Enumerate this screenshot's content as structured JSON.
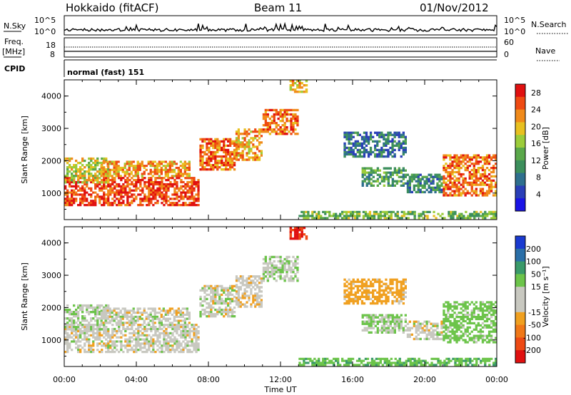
{
  "header": {
    "station": "Hokkaido (fitACF)",
    "beam": "Beam 11",
    "date": "01/Nov/2012"
  },
  "status_panels": {
    "nsky_label": "N.Sky",
    "nsearch_label": "N.Search",
    "freq_label_line1": "Freq.",
    "freq_label_line2": "[MHz]",
    "nave_label": "Nave",
    "cpid_label": "CPID",
    "cpid_text": "normal (fast) 151",
    "nsky_ticks": [
      "10^5",
      "10^0"
    ],
    "nsearch_ticks": [
      "10^5",
      "10^0"
    ],
    "freq_ticks": [
      "18",
      "8"
    ],
    "nave_ticks": [
      "60",
      "0"
    ]
  },
  "chart_data": [
    {
      "type": "heatmap",
      "panel": "power",
      "xlabel": "Time UT",
      "ylabel": "Slant Range [km]",
      "x_ticks": [
        "00:00",
        "04:00",
        "08:00",
        "12:00",
        "16:00",
        "20:00",
        "00:00"
      ],
      "xlim_hours": [
        0,
        24
      ],
      "y_ticks": [
        1000,
        2000,
        3000,
        4000
      ],
      "ylim": [
        180,
        4500
      ],
      "colorbar": {
        "label": "Power [dB]",
        "ticks": [
          4,
          8,
          12,
          16,
          20,
          24,
          28
        ],
        "range": [
          0,
          30
        ],
        "colors": [
          "#1a14e6",
          "#2a3fb8",
          "#2e6f8e",
          "#3c8f5c",
          "#5aa84a",
          "#9ccc3a",
          "#e8c020",
          "#f08a1a",
          "#ef4a12",
          "#e01010"
        ]
      },
      "regions": [
        {
          "t0": 0.0,
          "t1": 7.5,
          "r0": 600,
          "r1": 1500,
          "value": 26
        },
        {
          "t0": 0.0,
          "t1": 2.5,
          "r0": 1300,
          "r1": 2100,
          "value": 18
        },
        {
          "t0": 2.0,
          "t1": 7.0,
          "r0": 1500,
          "r1": 2000,
          "value": 22
        },
        {
          "t0": 7.5,
          "t1": 9.5,
          "r0": 1700,
          "r1": 2700,
          "value": 24
        },
        {
          "t0": 9.5,
          "t1": 11.0,
          "r0": 2000,
          "r1": 3000,
          "value": 22
        },
        {
          "t0": 11.0,
          "t1": 13.0,
          "r0": 2800,
          "r1": 3600,
          "value": 24
        },
        {
          "t0": 12.5,
          "t1": 13.5,
          "r0": 4100,
          "r1": 4500,
          "value": 20
        },
        {
          "t0": 15.5,
          "t1": 19.0,
          "r0": 2100,
          "r1": 2900,
          "value": 8
        },
        {
          "t0": 16.5,
          "t1": 19.0,
          "r0": 1200,
          "r1": 1800,
          "value": 12
        },
        {
          "t0": 19.0,
          "t1": 21.0,
          "r0": 1000,
          "r1": 1600,
          "value": 10
        },
        {
          "t0": 21.0,
          "t1": 24.0,
          "r0": 900,
          "r1": 2200,
          "value": 24
        },
        {
          "t0": 13.0,
          "t1": 24.0,
          "r0": 200,
          "r1": 450,
          "value": 14
        }
      ]
    },
    {
      "type": "heatmap",
      "panel": "velocity",
      "xlabel": "Time UT",
      "ylabel": "Slant Range [km]",
      "x_ticks": [
        "00:00",
        "04:00",
        "08:00",
        "12:00",
        "16:00",
        "20:00",
        "00:00"
      ],
      "xlim_hours": [
        0,
        24
      ],
      "y_ticks": [
        1000,
        2000,
        3000,
        4000
      ],
      "ylim": [
        180,
        4500
      ],
      "colorbar": {
        "label": "Velocity [m s⁻¹]",
        "ticks": [
          200,
          100,
          50,
          15,
          -15,
          -50,
          -100,
          -200
        ],
        "colors": [
          "#1a3ad0",
          "#2a6fa8",
          "#3a9a6a",
          "#6cc44a",
          "#c8c8c0",
          "#c8c8c0",
          "#f0a020",
          "#f07818",
          "#ee4a14",
          "#e01010"
        ]
      },
      "regions": [
        {
          "t0": 0.0,
          "t1": 7.5,
          "r0": 600,
          "r1": 1500,
          "value": 0
        },
        {
          "t0": 0.0,
          "t1": 2.5,
          "r0": 1300,
          "r1": 2100,
          "value": 5
        },
        {
          "t0": 2.0,
          "t1": 7.0,
          "r0": 1500,
          "r1": 2000,
          "value": 0
        },
        {
          "t0": 7.5,
          "t1": 9.5,
          "r0": 1700,
          "r1": 2700,
          "value": 0
        },
        {
          "t0": 9.5,
          "t1": 11.0,
          "r0": 2000,
          "r1": 3000,
          "value": -5
        },
        {
          "t0": 11.0,
          "t1": 13.0,
          "r0": 2800,
          "r1": 3600,
          "value": 10
        },
        {
          "t0": 12.5,
          "t1": 13.5,
          "r0": 4100,
          "r1": 4500,
          "value": -200
        },
        {
          "t0": 15.5,
          "t1": 19.0,
          "r0": 2100,
          "r1": 2900,
          "value": -30
        },
        {
          "t0": 16.5,
          "t1": 19.0,
          "r0": 1200,
          "r1": 1800,
          "value": 20
        },
        {
          "t0": 19.0,
          "t1": 21.0,
          "r0": 1000,
          "r1": 1600,
          "value": 0
        },
        {
          "t0": 21.0,
          "t1": 24.0,
          "r0": 900,
          "r1": 2200,
          "value": 30
        },
        {
          "t0": 13.0,
          "t1": 24.0,
          "r0": 200,
          "r1": 450,
          "value": 40
        }
      ]
    }
  ]
}
